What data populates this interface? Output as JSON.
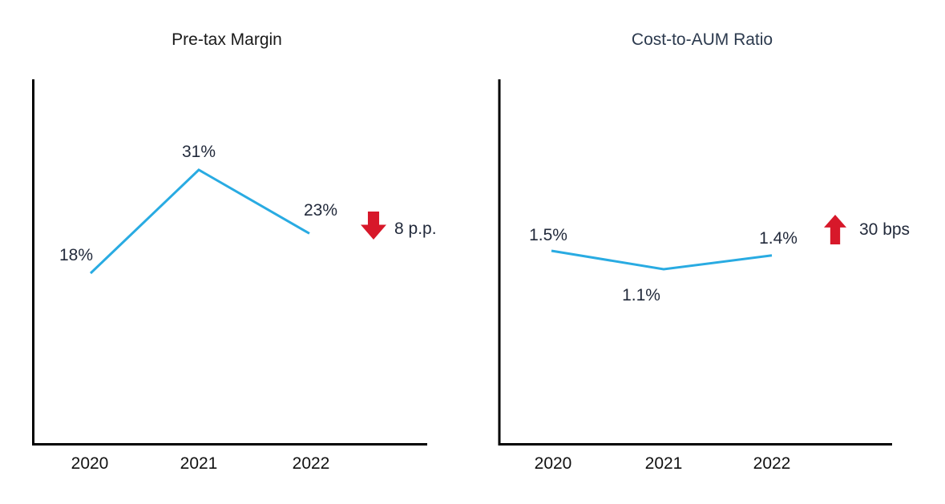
{
  "page": {
    "background": "#ffffff"
  },
  "chart_data": [
    {
      "type": "line",
      "title": "Pre-tax Margin",
      "categories": [
        "2020",
        "2021",
        "2022"
      ],
      "values": [
        18,
        31,
        23
      ],
      "unit": "%",
      "data_labels": [
        "18%",
        "31%",
        "23%"
      ],
      "line_color": "#29abe2",
      "axis_color": "#000000",
      "grid": false,
      "legend": "none",
      "annotation": {
        "direction": "down",
        "label": "8 p.p.",
        "color": "#d7182a"
      }
    },
    {
      "type": "line",
      "title": "Cost-to-AUM Ratio",
      "categories": [
        "2020",
        "2021",
        "2022"
      ],
      "values": [
        1.5,
        1.1,
        1.4
      ],
      "unit": "%",
      "data_labels": [
        "1.5%",
        "1.1%",
        "1.4%"
      ],
      "line_color": "#29abe2",
      "axis_color": "#000000",
      "grid": false,
      "legend": "none",
      "annotation": {
        "direction": "up",
        "label": "30 bps",
        "color": "#d7182a"
      }
    }
  ]
}
